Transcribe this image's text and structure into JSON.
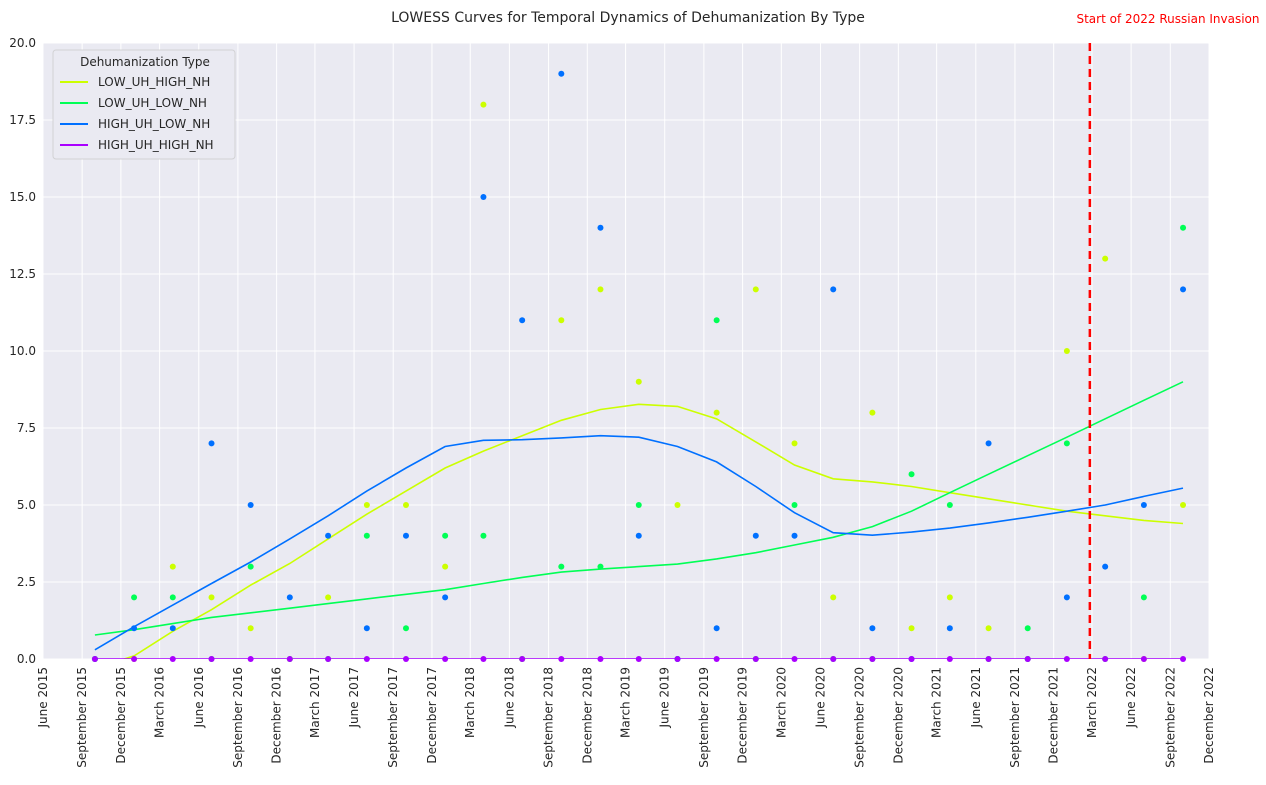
{
  "chart_data": {
    "type": "line",
    "title": "LOWESS Curves for Temporal Dynamics of Dehumanization By Type",
    "xlabel": "",
    "ylabel": "",
    "ylim": [
      0,
      20
    ],
    "yticks": [
      "0.0",
      "2.5",
      "5.0",
      "7.5",
      "10.0",
      "12.5",
      "15.0",
      "17.5",
      "20.0"
    ],
    "xlim": [
      "2015-06",
      "2022-12"
    ],
    "xticks": [
      "June 2015",
      "September 2015",
      "December 2015",
      "March 2016",
      "June 2016",
      "September 2016",
      "December 2016",
      "March 2017",
      "June 2017",
      "September 2017",
      "December 2017",
      "March 2018",
      "June 2018",
      "September 2018",
      "December 2018",
      "March 2019",
      "June 2019",
      "September 2019",
      "December 2019",
      "March 2020",
      "June 2020",
      "September 2020",
      "December 2020",
      "March 2021",
      "June 2021",
      "September 2021",
      "December 2021",
      "March 2022",
      "June 2022",
      "September 2022",
      "December 2022"
    ],
    "grid": true,
    "background": "#eaeaf2",
    "legend": {
      "title": "Dehumanization Type",
      "position": "top-left"
    },
    "annotation": {
      "label": "Start of 2022 Russian Invasion",
      "date": "2022-02-24",
      "color": "#ff0000"
    },
    "point_months": [
      "2015-10",
      "2016-01",
      "2016-04",
      "2016-07",
      "2016-10",
      "2017-01",
      "2017-04",
      "2017-07",
      "2017-10",
      "2018-01",
      "2018-04",
      "2018-07",
      "2018-10",
      "2019-01",
      "2019-04",
      "2019-07",
      "2019-10",
      "2020-01",
      "2020-04",
      "2020-07",
      "2020-10",
      "2021-01",
      "2021-04",
      "2021-07",
      "2021-10",
      "2022-01",
      "2022-04",
      "2022-07",
      "2022-10"
    ],
    "series": [
      {
        "name": "LOW_UH_HIGH_NH",
        "color": "#ccff00",
        "points": [
          0,
          0,
          3,
          2,
          1,
          0,
          2,
          5,
          5,
          3,
          18,
          0,
          11,
          12,
          9,
          5,
          8,
          12,
          7,
          2,
          8,
          1,
          2,
          1,
          0,
          10,
          13,
          0,
          5
        ],
        "curve_x": [
          "2015-10",
          "2016-01",
          "2016-04",
          "2016-07",
          "2016-10",
          "2017-01",
          "2017-04",
          "2017-07",
          "2017-10",
          "2018-01",
          "2018-04",
          "2018-07",
          "2018-10",
          "2019-01",
          "2019-04",
          "2019-07",
          "2019-10",
          "2020-01",
          "2020-04",
          "2020-07",
          "2020-10",
          "2021-01",
          "2021-04",
          "2021-07",
          "2021-10",
          "2022-01",
          "2022-04",
          "2022-07",
          "2022-10"
        ],
        "curve_y": [
          -0.3,
          0.1,
          0.9,
          1.6,
          2.4,
          3.1,
          3.9,
          4.7,
          5.45,
          6.2,
          6.75,
          7.25,
          7.75,
          8.1,
          8.27,
          8.2,
          7.8,
          7.05,
          6.3,
          5.85,
          5.75,
          5.6,
          5.4,
          5.2,
          5.0,
          4.8,
          4.65,
          4.5,
          4.4
        ]
      },
      {
        "name": "LOW_UH_LOW_NH",
        "color": "#00ff55",
        "points": [
          0,
          2,
          2,
          0,
          3,
          0,
          0,
          4,
          1,
          4,
          4,
          0,
          3,
          3,
          5,
          0,
          11,
          0,
          5,
          0,
          0,
          6,
          5,
          0,
          1,
          7,
          0,
          2,
          14
        ],
        "curve_x": [
          "2015-10",
          "2016-01",
          "2016-04",
          "2016-07",
          "2016-10",
          "2017-01",
          "2017-04",
          "2017-07",
          "2017-10",
          "2018-01",
          "2018-04",
          "2018-07",
          "2018-10",
          "2019-01",
          "2019-04",
          "2019-07",
          "2019-10",
          "2020-01",
          "2020-04",
          "2020-07",
          "2020-10",
          "2021-01",
          "2021-04",
          "2021-07",
          "2021-10",
          "2022-01",
          "2022-04",
          "2022-07",
          "2022-10"
        ],
        "curve_y": [
          0.78,
          0.95,
          1.15,
          1.35,
          1.5,
          1.65,
          1.8,
          1.95,
          2.1,
          2.25,
          2.45,
          2.65,
          2.82,
          2.92,
          3.0,
          3.08,
          3.25,
          3.45,
          3.7,
          3.95,
          4.3,
          4.8,
          5.4,
          6.0,
          6.6,
          7.2,
          7.8,
          8.4,
          9.0
        ]
      },
      {
        "name": "HIGH_UH_LOW_NH",
        "color": "#0070ff",
        "points": [
          0,
          1,
          1,
          7,
          5,
          2,
          4,
          1,
          4,
          2,
          15,
          11,
          19,
          14,
          4,
          0,
          1,
          4,
          4,
          12,
          1,
          0,
          1,
          7,
          0,
          2,
          3,
          5,
          12
        ],
        "curve_x": [
          "2015-10",
          "2016-01",
          "2016-04",
          "2016-07",
          "2016-10",
          "2017-01",
          "2017-04",
          "2017-07",
          "2017-10",
          "2018-01",
          "2018-04",
          "2018-07",
          "2018-10",
          "2019-01",
          "2019-04",
          "2019-07",
          "2019-10",
          "2020-01",
          "2020-04",
          "2020-07",
          "2020-10",
          "2021-01",
          "2021-04",
          "2021-07",
          "2021-10",
          "2022-01",
          "2022-04",
          "2022-07",
          "2022-10"
        ],
        "curve_y": [
          0.3,
          1.05,
          1.75,
          2.45,
          3.15,
          3.9,
          4.65,
          5.45,
          6.2,
          6.9,
          7.1,
          7.12,
          7.18,
          7.25,
          7.2,
          6.9,
          6.4,
          5.6,
          4.75,
          4.1,
          4.02,
          4.12,
          4.25,
          4.42,
          4.6,
          4.8,
          5.0,
          5.28,
          5.55
        ]
      },
      {
        "name": "HIGH_UH_HIGH_NH",
        "color": "#aa00ff",
        "points": [
          0,
          0,
          0,
          0,
          0,
          0,
          0,
          0,
          0,
          0,
          0,
          0,
          0,
          0,
          0,
          0,
          0,
          0,
          0,
          0,
          0,
          0,
          0,
          0,
          0,
          0,
          0,
          0,
          0
        ],
        "curve_x": [
          "2015-10",
          "2016-01",
          "2016-04",
          "2016-07",
          "2016-10",
          "2017-01",
          "2017-04",
          "2017-07",
          "2017-10",
          "2018-01",
          "2018-04",
          "2018-07",
          "2018-10",
          "2019-01",
          "2019-04",
          "2019-07",
          "2019-10",
          "2020-01",
          "2020-04",
          "2020-07",
          "2020-10",
          "2021-01",
          "2021-04",
          "2021-07",
          "2021-10",
          "2022-01",
          "2022-04",
          "2022-07",
          "2022-10"
        ],
        "curve_y": [
          0,
          0,
          0,
          0,
          0,
          0,
          0,
          0,
          0,
          0,
          0,
          0,
          0,
          0,
          0,
          0,
          0,
          0,
          0,
          0,
          0,
          0,
          0,
          0,
          0,
          0,
          0,
          0,
          0
        ]
      }
    ]
  }
}
